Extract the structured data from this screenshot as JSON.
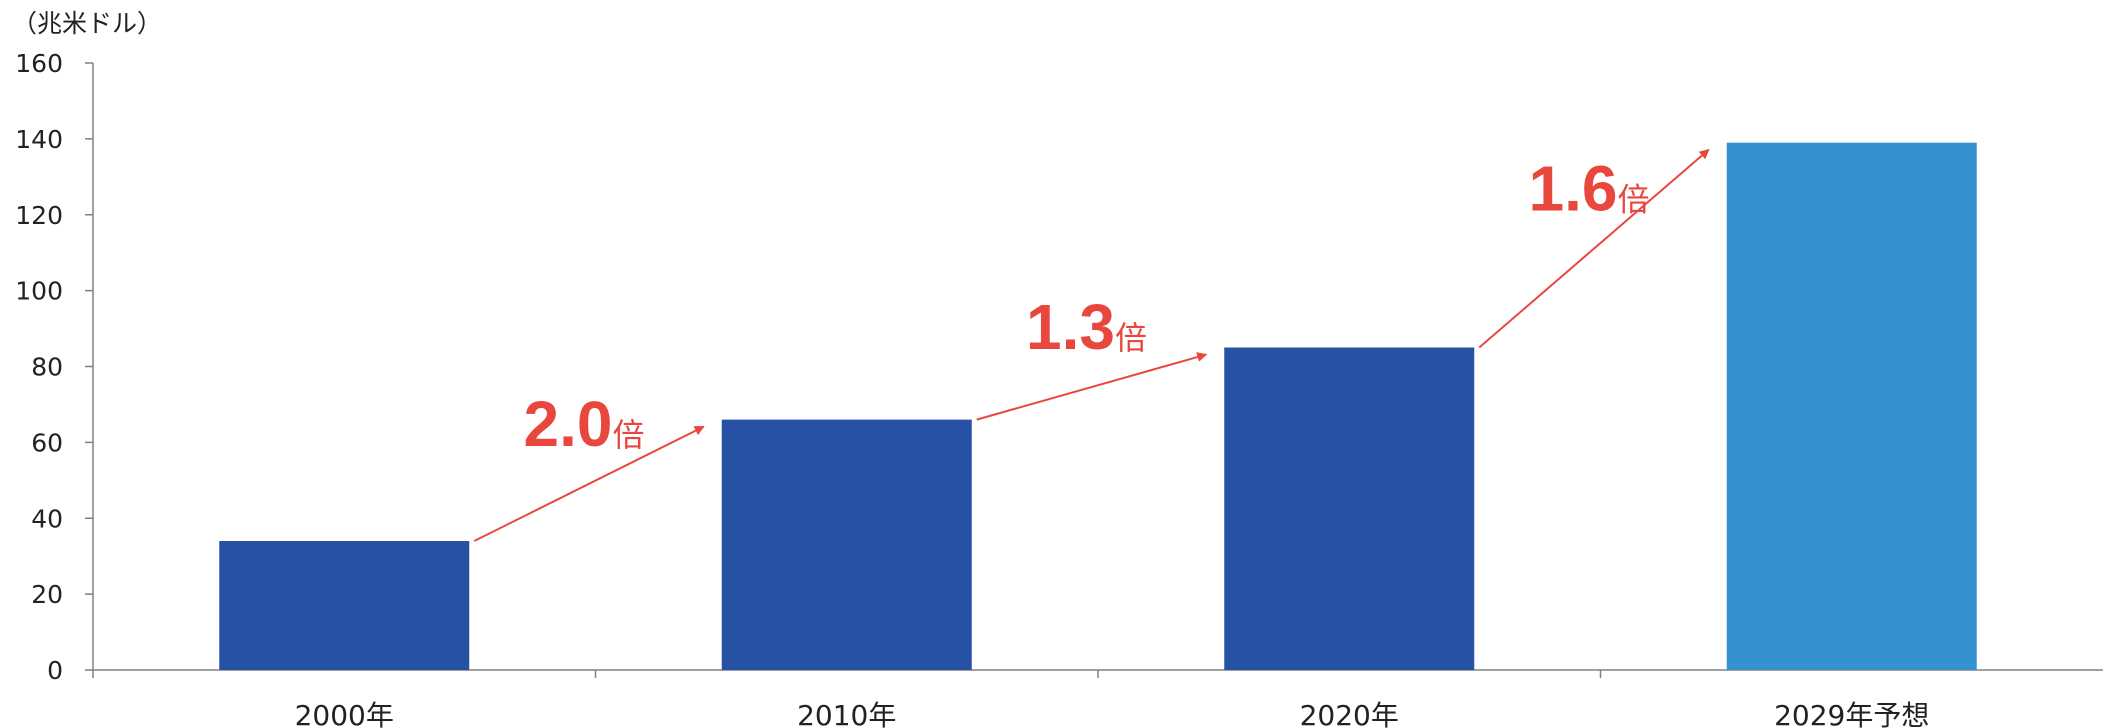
{
  "chart_data": {
    "type": "bar",
    "y_unit": "（兆米ドル）",
    "categories": [
      "2000年",
      "2010年",
      "2020年",
      "2029年予想"
    ],
    "values": [
      34,
      66,
      85,
      139
    ],
    "bar_colors": [
      "#2751A3",
      "#2751A3",
      "#2751A3",
      "#3592D0"
    ],
    "ylim": [
      0,
      160
    ],
    "yticks": [
      0,
      20,
      40,
      60,
      80,
      100,
      120,
      140,
      160
    ],
    "grid": false,
    "legend": "none",
    "annotations": [
      {
        "from": 0,
        "to": 1,
        "value": "2.0",
        "suffix": "倍"
      },
      {
        "from": 1,
        "to": 2,
        "value": "1.3",
        "suffix": "倍"
      },
      {
        "from": 2,
        "to": 3,
        "value": "1.6",
        "suffix": "倍"
      }
    ],
    "annotation_color": "#E8473E",
    "axis_color": "#808080"
  }
}
